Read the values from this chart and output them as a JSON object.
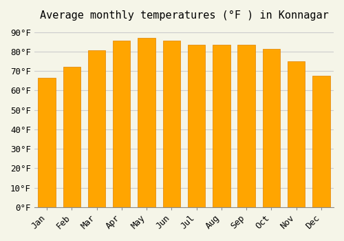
{
  "months": [
    "Jan",
    "Feb",
    "Mar",
    "Apr",
    "May",
    "Jun",
    "Jul",
    "Aug",
    "Sep",
    "Oct",
    "Nov",
    "Dec"
  ],
  "temperatures": [
    66.5,
    72,
    80.5,
    85.5,
    87,
    85.5,
    83.5,
    83.5,
    83.5,
    81.5,
    75,
    67.5
  ],
  "bar_color": "#FFA500",
  "bar_edge_color": "#E08000",
  "title": "Average monthly temperatures (°F ) in Konnagar",
  "ylabel": "",
  "xlabel": "",
  "ylim": [
    0,
    93
  ],
  "yticks": [
    0,
    10,
    20,
    30,
    40,
    50,
    60,
    70,
    80,
    90
  ],
  "ytick_labels": [
    "0°F",
    "10°F",
    "20°F",
    "30°F",
    "40°F",
    "50°F",
    "60°F",
    "70°F",
    "80°F",
    "90°F"
  ],
  "background_color": "#f5f5e8",
  "grid_color": "#cccccc",
  "title_fontsize": 11,
  "tick_fontsize": 9
}
